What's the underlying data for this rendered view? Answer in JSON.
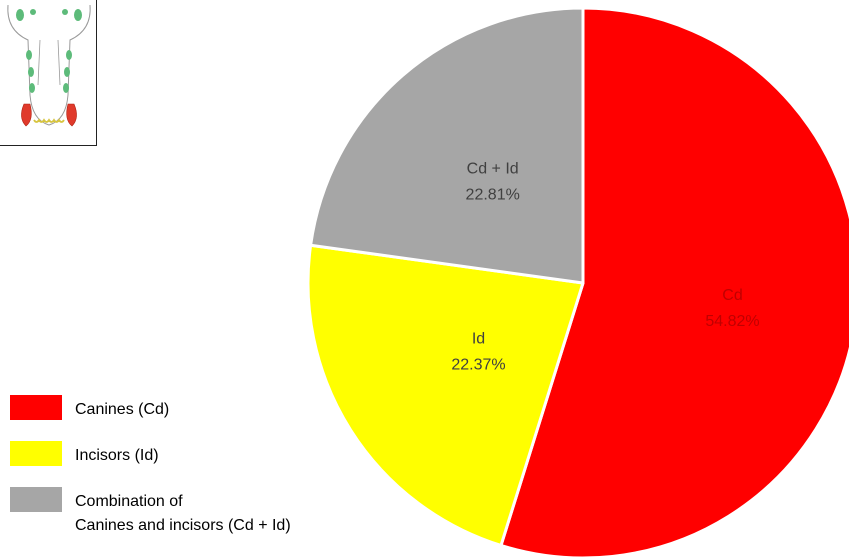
{
  "chart_data": {
    "type": "pie",
    "slices": [
      {
        "label": "Cd",
        "value": 54.82,
        "value_text": "54.82%",
        "color": "#ff0000",
        "text_color": "#c00000"
      },
      {
        "label": "Id",
        "value": 22.37,
        "value_text": "22.37%",
        "color": "#ffff00",
        "text_color": "#404040"
      },
      {
        "label": "Cd + Id",
        "value": 22.81,
        "value_text": "22.81%",
        "color": "#a6a6a6",
        "text_color": "#404040"
      }
    ],
    "legend": [
      {
        "lines": [
          "Canines (Cd)"
        ],
        "color": "#ff0000"
      },
      {
        "lines": [
          "Incisors (Id)"
        ],
        "color": "#ffff00"
      },
      {
        "lines": [
          "Combination of",
          "Canines and incisors (Cd + Id)"
        ],
        "color": "#a6a6a6"
      }
    ],
    "legend_position": "bottom-left",
    "start_angle": "12 o'clock, clockwise"
  },
  "inset": {
    "icon": "teeth-diagram-icon"
  }
}
